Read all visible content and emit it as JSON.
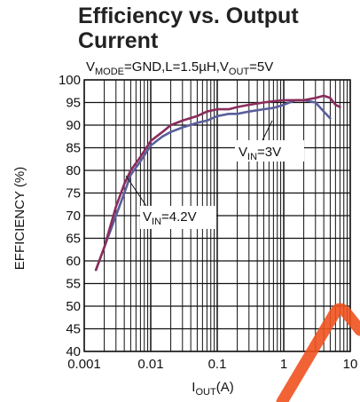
{
  "chart_data": {
    "type": "line",
    "title": "Efficiency vs. Output Current",
    "title_lines": [
      "Efficiency vs. Output",
      "Current"
    ],
    "conditions": {
      "p1": "V",
      "p1_sub": "MODE",
      "p2": "=GND,L=1.5µH,V",
      "p2_sub": "OUT",
      "p3": "=5V"
    },
    "xlabel": {
      "main": "I",
      "sub": "OUT",
      "unit": "(A)"
    },
    "ylabel": "EFFICIENCY (%)",
    "x_scale": "log",
    "xlim": [
      0.001,
      10
    ],
    "ylim": [
      40,
      100
    ],
    "x_ticks": [
      0.001,
      0.01,
      0.1,
      1,
      10
    ],
    "x_tick_labels": [
      "0.001",
      "0.01",
      "0.1",
      "1",
      "10"
    ],
    "y_ticks": [
      40,
      45,
      50,
      55,
      60,
      65,
      70,
      75,
      80,
      85,
      90,
      95,
      100
    ],
    "y_tick_labels": [
      "40",
      "45",
      "50",
      "55",
      "60",
      "65",
      "70",
      "75",
      "80",
      "85",
      "90",
      "95",
      "100"
    ],
    "grid": true,
    "series": [
      {
        "name": "V_IN=4.2V",
        "label_main": "V",
        "label_sub": "IN",
        "label_rest": "=4.2V",
        "color": "#8B2C5C",
        "points": [
          [
            0.0015,
            58
          ],
          [
            0.002,
            63
          ],
          [
            0.003,
            72
          ],
          [
            0.004,
            77
          ],
          [
            0.005,
            80
          ],
          [
            0.007,
            83
          ],
          [
            0.01,
            86.5
          ],
          [
            0.015,
            88.5
          ],
          [
            0.02,
            90
          ],
          [
            0.03,
            91
          ],
          [
            0.05,
            92
          ],
          [
            0.07,
            93
          ],
          [
            0.1,
            93.5
          ],
          [
            0.15,
            93.5
          ],
          [
            0.2,
            94
          ],
          [
            0.3,
            94.5
          ],
          [
            0.5,
            95
          ],
          [
            0.7,
            95.3
          ],
          [
            1,
            95.5
          ],
          [
            1.5,
            95.5
          ],
          [
            2,
            95.5
          ],
          [
            3,
            96
          ],
          [
            4,
            96.5
          ],
          [
            5,
            96
          ],
          [
            6,
            94.5
          ],
          [
            7,
            94
          ]
        ]
      },
      {
        "name": "V_IN=3V",
        "label_main": "V",
        "label_sub": "IN",
        "label_rest": "=3V",
        "color": "#5A5F9C",
        "points": [
          [
            0.0015,
            58
          ],
          [
            0.002,
            63
          ],
          [
            0.003,
            70
          ],
          [
            0.004,
            75
          ],
          [
            0.005,
            79
          ],
          [
            0.007,
            82
          ],
          [
            0.01,
            85.5
          ],
          [
            0.015,
            87.5
          ],
          [
            0.02,
            88.5
          ],
          [
            0.03,
            89.5
          ],
          [
            0.05,
            90.5
          ],
          [
            0.07,
            91
          ],
          [
            0.1,
            92
          ],
          [
            0.15,
            92.5
          ],
          [
            0.2,
            92.5
          ],
          [
            0.3,
            93
          ],
          [
            0.5,
            93.5
          ],
          [
            0.7,
            93.8
          ],
          [
            1,
            94.5
          ],
          [
            1.5,
            95.5
          ],
          [
            2,
            95.5
          ],
          [
            3,
            95
          ],
          [
            4,
            93
          ],
          [
            5,
            91.5
          ]
        ]
      }
    ]
  }
}
